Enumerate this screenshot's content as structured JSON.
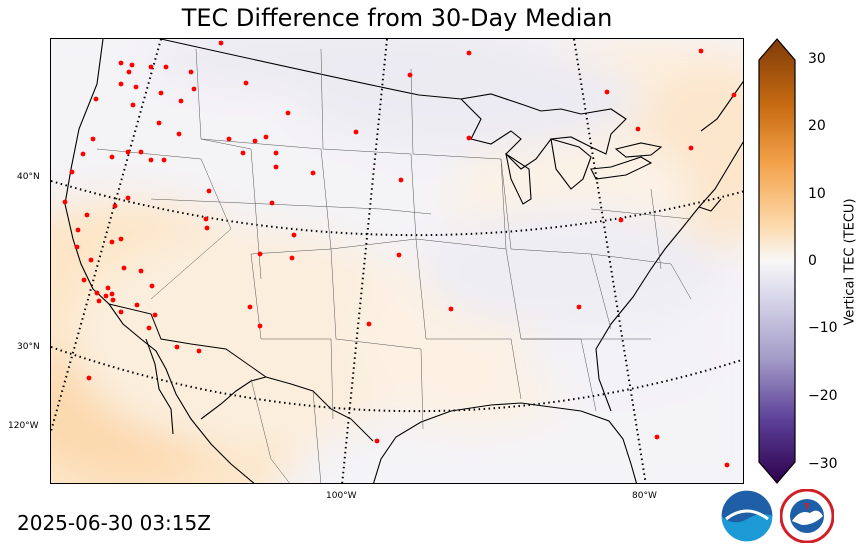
{
  "title": "TEC Difference from 30-Day Median",
  "timestamp": "2025-06-30 03:15Z",
  "colorbar": {
    "label": "Vertical TEC (TECU)",
    "ticks": [
      "30",
      "20",
      "10",
      "0",
      "−10",
      "−20",
      "−30"
    ],
    "range": [
      -30,
      30
    ],
    "extend": "both",
    "low_color": "#2d004b",
    "mid_color": "#f7f7f7",
    "high_color": "#7f3b08"
  },
  "map": {
    "projection": "lambert-conformal-conic",
    "lat_labels": [
      "40°N",
      "30°N"
    ],
    "lon_labels": [
      "120°W",
      "100°W",
      "80°W"
    ],
    "station_color": "#ff0000",
    "graticule_style": "dotted"
  },
  "logos": [
    "noaa-logo",
    "nws-logo"
  ]
}
